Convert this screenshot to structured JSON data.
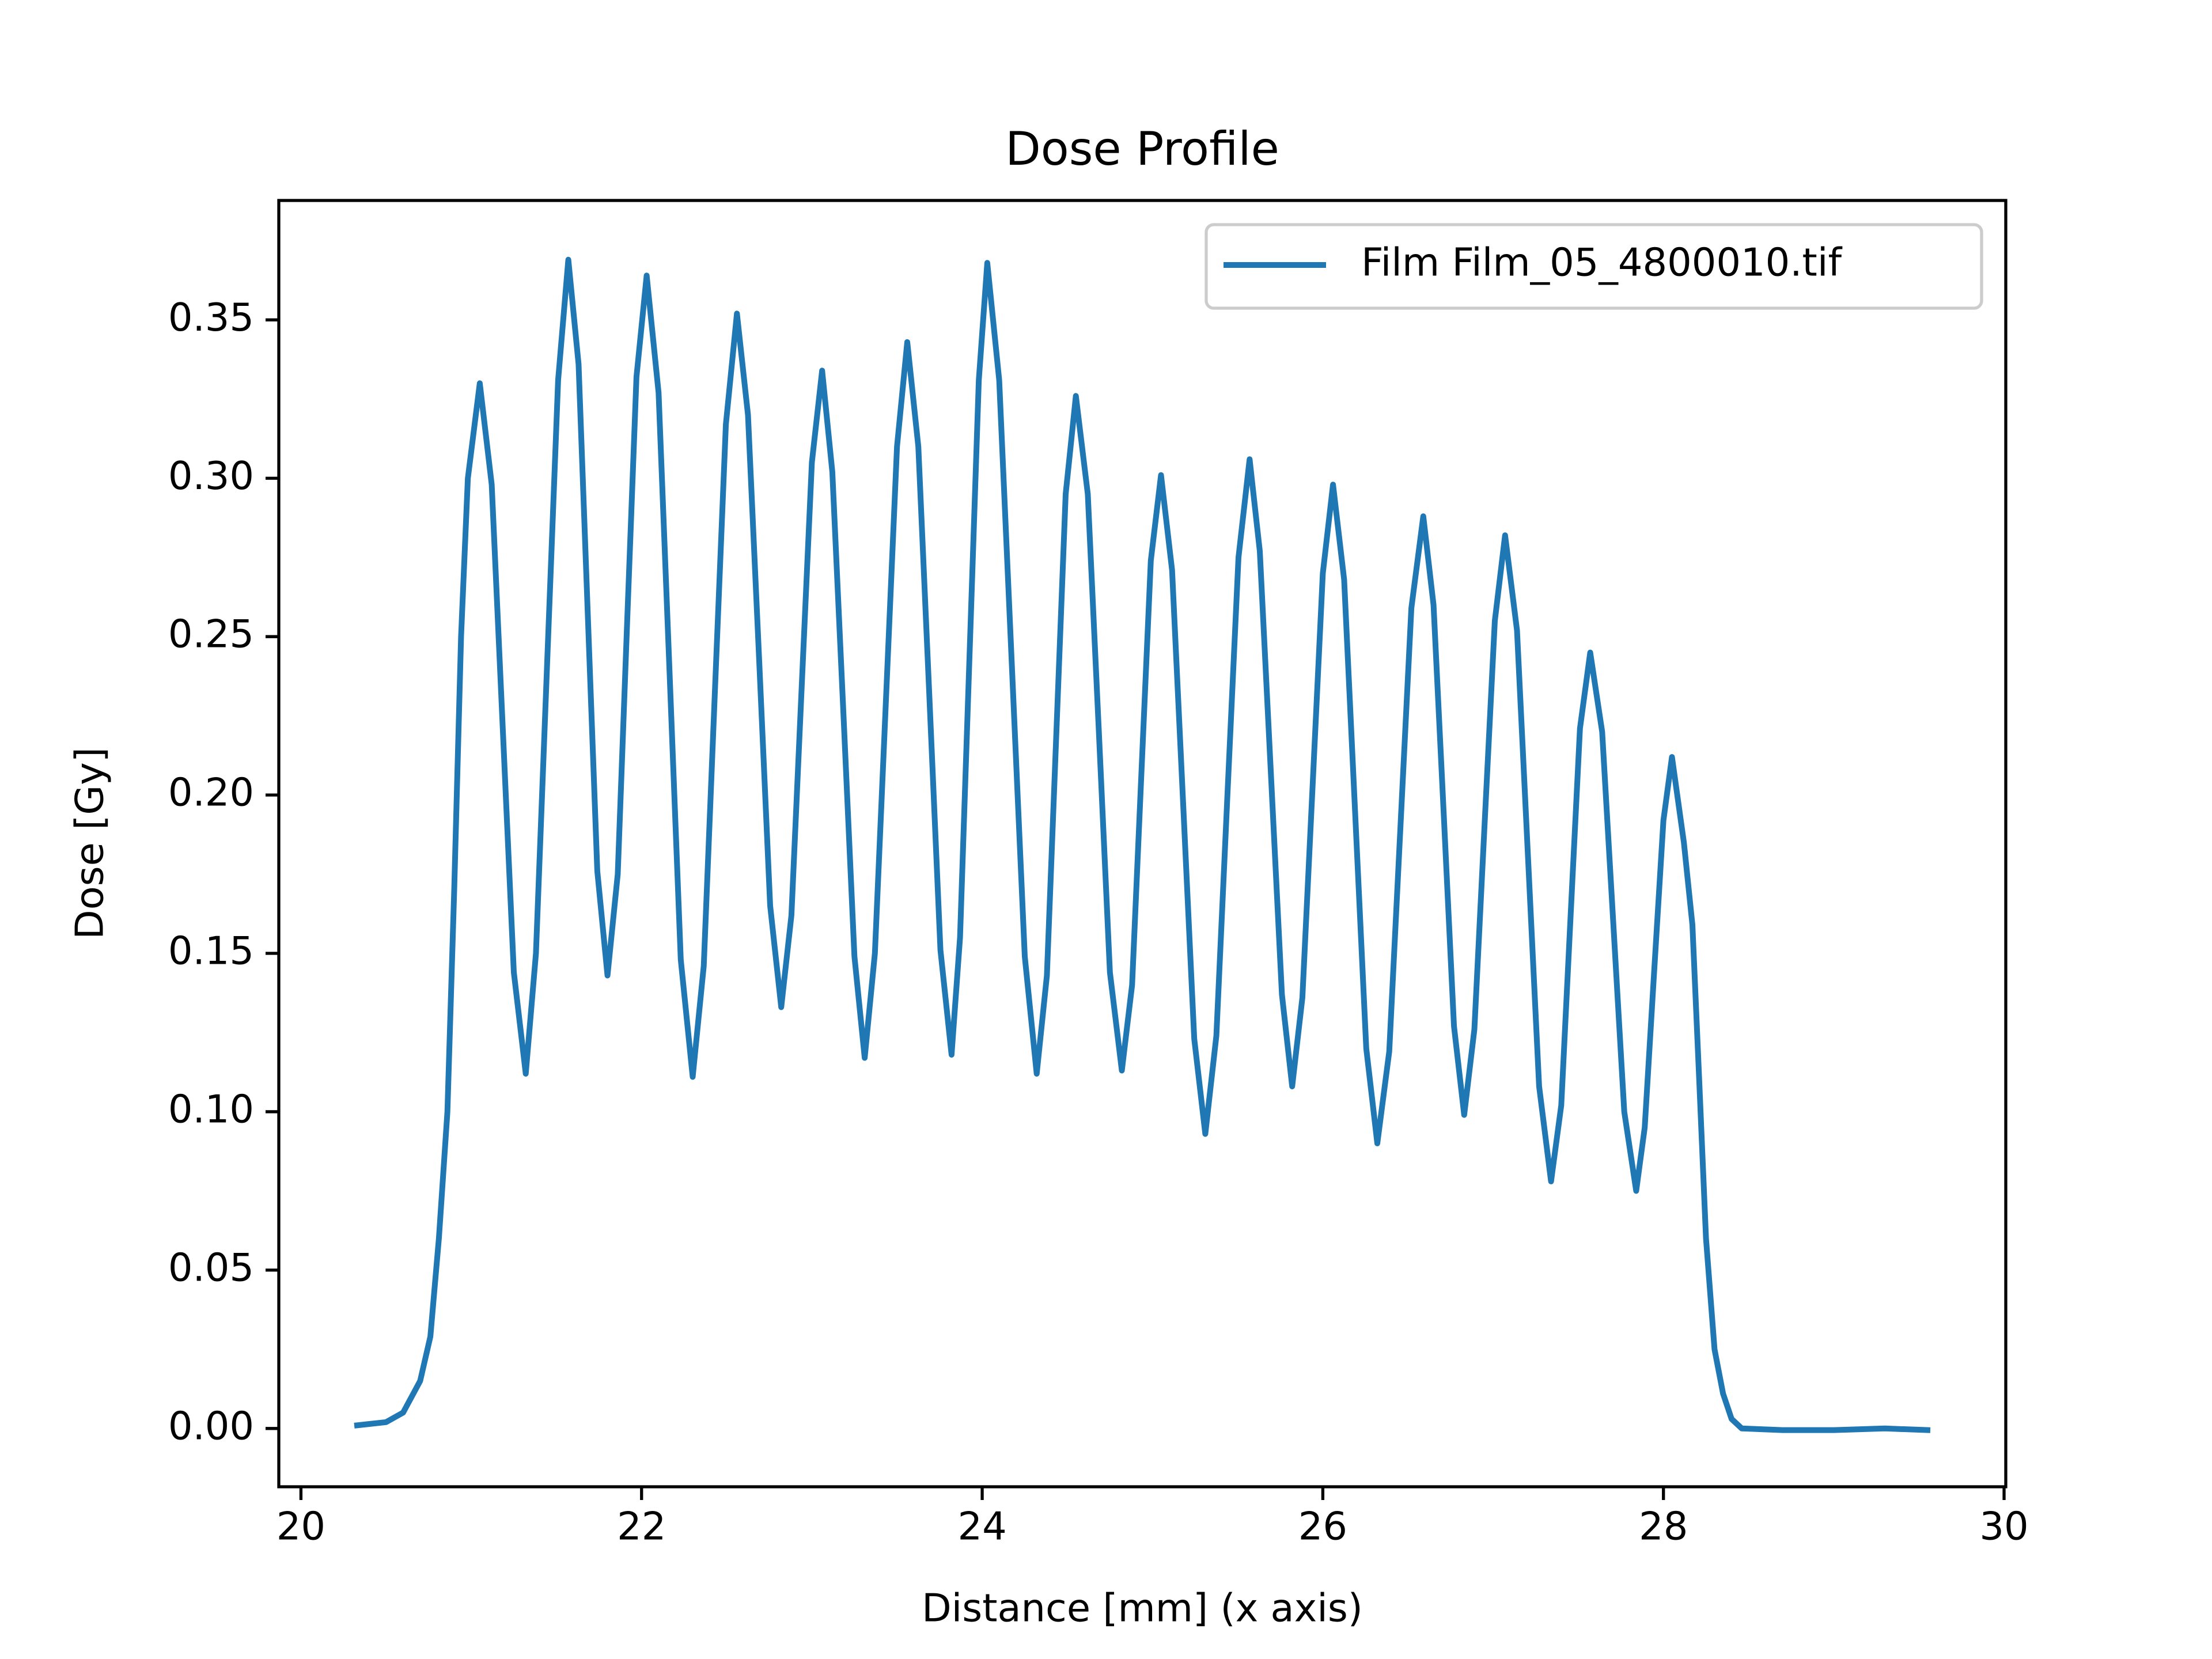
{
  "chart_data": {
    "type": "line",
    "title": "Dose Profile",
    "x_label": "Distance [mm] (x axis)",
    "y_label": "Dose [Gy]",
    "xlim": [
      19.87,
      30.01
    ],
    "ylim": [
      -0.0184,
      0.3877
    ],
    "xticks": [
      20,
      22,
      24,
      26,
      28,
      30
    ],
    "yticks": [
      {
        "value": 0,
        "label": "0.00"
      },
      {
        "value": 0.05,
        "label": "0.05"
      },
      {
        "value": 0.1,
        "label": "0.10"
      },
      {
        "value": 0.15,
        "label": "0.15"
      },
      {
        "value": 0.2,
        "label": "0.20"
      },
      {
        "value": 0.25,
        "label": "0.25"
      },
      {
        "value": 0.3,
        "label": "0.30"
      },
      {
        "value": 0.35,
        "label": "0.35"
      }
    ],
    "grid": false,
    "legend": "upper right",
    "x": [
      20.33,
      20.5,
      20.6,
      20.7,
      20.76,
      20.81,
      20.86,
      20.9,
      20.94,
      20.98,
      21.05,
      21.12,
      21.185,
      21.25,
      21.32,
      21.38,
      21.445,
      21.51,
      21.57,
      21.63,
      21.685,
      21.74,
      21.8,
      21.86,
      21.915,
      21.97,
      22.03,
      22.1,
      22.165,
      22.23,
      22.3,
      22.365,
      22.43,
      22.495,
      22.56,
      22.625,
      22.69,
      22.755,
      22.82,
      22.88,
      22.94,
      23.0,
      23.06,
      23.12,
      23.185,
      23.25,
      23.31,
      23.37,
      23.435,
      23.5,
      23.56,
      23.625,
      23.69,
      23.755,
      23.82,
      23.87,
      23.925,
      23.98,
      24.03,
      24.1,
      24.175,
      24.25,
      24.32,
      24.38,
      24.435,
      24.49,
      24.55,
      24.62,
      24.685,
      24.75,
      24.82,
      24.88,
      24.935,
      24.99,
      25.05,
      25.115,
      25.18,
      25.245,
      25.31,
      25.375,
      25.44,
      25.505,
      25.57,
      25.63,
      25.695,
      25.76,
      25.82,
      25.88,
      25.94,
      26.0,
      26.06,
      26.125,
      26.19,
      26.255,
      26.32,
      26.39,
      26.455,
      26.52,
      26.59,
      26.65,
      26.71,
      26.77,
      26.83,
      26.89,
      26.95,
      27.01,
      27.07,
      27.14,
      27.205,
      27.27,
      27.34,
      27.4,
      27.455,
      27.51,
      27.57,
      27.64,
      27.705,
      27.77,
      27.84,
      27.89,
      27.945,
      28.0,
      28.05,
      28.12,
      28.17,
      28.21,
      28.25,
      28.3,
      28.35,
      28.4,
      28.46,
      28.7,
      29.0,
      29.3,
      29.55
    ],
    "series": [
      {
        "name": "Film Film_05_4800010.tif",
        "color": "#1f77b4",
        "values": [
          0.001,
          0.002,
          0.005,
          0.015,
          0.029,
          0.06,
          0.1,
          0.17,
          0.25,
          0.3,
          0.33,
          0.298,
          0.221,
          0.144,
          0.112,
          0.15,
          0.241,
          0.331,
          0.369,
          0.336,
          0.256,
          0.176,
          0.143,
          0.175,
          0.254,
          0.332,
          0.364,
          0.327,
          0.238,
          0.148,
          0.111,
          0.146,
          0.232,
          0.317,
          0.352,
          0.32,
          0.243,
          0.165,
          0.133,
          0.162,
          0.234,
          0.305,
          0.334,
          0.302,
          0.226,
          0.149,
          0.117,
          0.15,
          0.23,
          0.31,
          0.343,
          0.31,
          0.231,
          0.151,
          0.118,
          0.155,
          0.243,
          0.331,
          0.368,
          0.331,
          0.24,
          0.149,
          0.112,
          0.143,
          0.219,
          0.295,
          0.326,
          0.295,
          0.22,
          0.144,
          0.113,
          0.14,
          0.207,
          0.274,
          0.301,
          0.271,
          0.197,
          0.123,
          0.093,
          0.124,
          0.2,
          0.275,
          0.306,
          0.277,
          0.207,
          0.137,
          0.108,
          0.136,
          0.203,
          0.27,
          0.298,
          0.268,
          0.194,
          0.12,
          0.09,
          0.119,
          0.189,
          0.259,
          0.288,
          0.26,
          0.194,
          0.127,
          0.099,
          0.126,
          0.191,
          0.255,
          0.282,
          0.252,
          0.18,
          0.108,
          0.078,
          0.102,
          0.162,
          0.221,
          0.245,
          0.22,
          0.16,
          0.1,
          0.075,
          0.095,
          0.144,
          0.192,
          0.212,
          0.185,
          0.159,
          0.11,
          0.06,
          0.025,
          0.011,
          0.003,
          0.0,
          -0.0005,
          -0.0005,
          0.0,
          -0.0005
        ]
      }
    ]
  }
}
